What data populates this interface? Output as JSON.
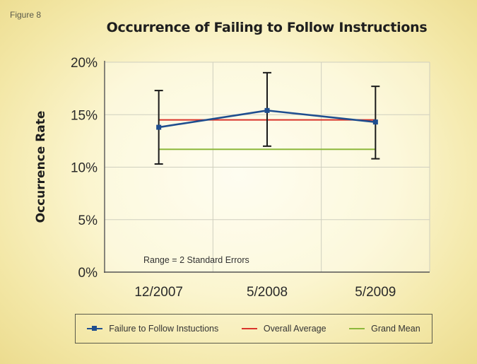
{
  "figure_label": "Figure 8",
  "chart_data": {
    "type": "line",
    "title": "Occurrence of Failing to Follow Instructions",
    "xlabel": "",
    "ylabel": "Occurrence Rate",
    "categories": [
      "12/2007",
      "5/2008",
      "5/2009"
    ],
    "y_ticks": [
      "0%",
      "5%",
      "10%",
      "15%",
      "20%"
    ],
    "ylim": [
      0,
      20
    ],
    "grid": true,
    "annotation": "Range = 2 Standard Errors",
    "series": [
      {
        "name": "Failure to Follow Instuctions",
        "values": [
          13.8,
          15.4,
          14.3
        ],
        "error_low": [
          10.3,
          12.0,
          10.8
        ],
        "error_high": [
          17.3,
          19.0,
          17.7
        ],
        "color": "#1f4e8f",
        "marker": "square"
      },
      {
        "name": "Overall Average",
        "values": [
          14.5,
          14.5,
          14.5
        ],
        "color": "#d9342b"
      },
      {
        "name": "Grand Mean",
        "values": [
          11.7,
          11.7,
          11.7
        ],
        "color": "#8db83c"
      }
    ],
    "legend_position": "bottom"
  }
}
